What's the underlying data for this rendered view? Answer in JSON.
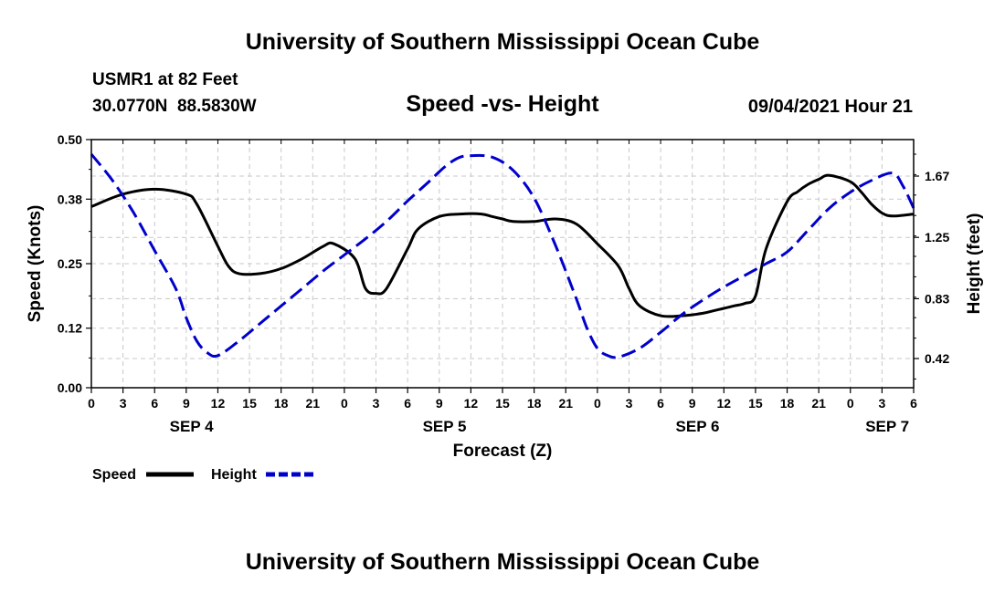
{
  "page": {
    "title_top": "University of Southern Mississippi Ocean Cube",
    "title_bottom": "University of Southern Mississippi Ocean Cube",
    "station": "USMR1 at 82 Feet",
    "location": "30.0770N  88.5830W",
    "datetime": "09/04/2021 Hour 21"
  },
  "chart_data": {
    "type": "line",
    "title": "Speed -vs- Height",
    "xlabel": "Forecast (Z)",
    "ylabel": "Speed (Knots)",
    "y2label": "Height (feet)",
    "x_hours_range": [
      0,
      78
    ],
    "ylim": [
      0.0,
      0.5
    ],
    "y2lim": [
      0.22,
      1.92
    ],
    "yticks": [
      0.0,
      0.12,
      0.25,
      0.38,
      0.5
    ],
    "ytick_labels": [
      "0.00",
      "0.12",
      "0.25",
      "0.38",
      "0.50"
    ],
    "y2ticks": [
      0.42,
      0.83,
      1.25,
      1.67
    ],
    "y2tick_labels": [
      "0.42",
      "0.83",
      "1.25",
      "1.67"
    ],
    "xtick_labels": [
      "0",
      "3",
      "6",
      "9",
      "12",
      "15",
      "18",
      "21",
      "0",
      "3",
      "6",
      "9",
      "12",
      "15",
      "18",
      "21",
      "0",
      "3",
      "6",
      "9",
      "12",
      "15",
      "18",
      "21",
      "0",
      "3",
      "6"
    ],
    "date_labels": [
      {
        "label": "SEP 4",
        "hour": 9.5
      },
      {
        "label": "SEP 5",
        "hour": 33.5
      },
      {
        "label": "SEP 6",
        "hour": 57.5
      },
      {
        "label": "SEP 7",
        "hour": 75.5
      }
    ],
    "grid": true,
    "series": [
      {
        "name": "Speed",
        "axis": "left",
        "color": "#000000",
        "dash": "solid",
        "x": [
          0,
          3,
          6,
          9,
          10,
          12,
          13,
          14,
          16,
          18,
          20,
          22,
          23,
          25,
          26,
          27,
          28,
          30,
          31,
          33,
          35,
          37,
          38,
          39,
          40,
          42,
          44,
          46,
          48,
          50,
          51,
          52,
          54,
          56,
          58,
          59,
          60,
          61,
          62,
          63,
          64,
          66,
          67,
          68,
          69,
          70,
          72,
          73,
          74,
          75,
          76,
          78
        ],
        "values": [
          0.365,
          0.39,
          0.4,
          0.39,
          0.37,
          0.285,
          0.245,
          0.23,
          0.23,
          0.24,
          0.26,
          0.285,
          0.29,
          0.26,
          0.2,
          0.19,
          0.2,
          0.28,
          0.32,
          0.345,
          0.35,
          0.35,
          0.345,
          0.34,
          0.335,
          0.335,
          0.34,
          0.33,
          0.29,
          0.245,
          0.2,
          0.165,
          0.145,
          0.145,
          0.15,
          0.155,
          0.16,
          0.165,
          0.17,
          0.185,
          0.28,
          0.375,
          0.395,
          0.41,
          0.42,
          0.428,
          0.415,
          0.395,
          0.37,
          0.352,
          0.346,
          0.35
        ]
      },
      {
        "name": "Height",
        "axis": "right",
        "color": "#0000cc",
        "dash": "dashed",
        "x": [
          0,
          2,
          4,
          6,
          8,
          9,
          10,
          11,
          12,
          14,
          16,
          18,
          20,
          22,
          24,
          26,
          28,
          30,
          32,
          33,
          34,
          35,
          36,
          38,
          40,
          42,
          44,
          46,
          47,
          48,
          49,
          50,
          52,
          54,
          56,
          58,
          60,
          62,
          64,
          66,
          68,
          70,
          72,
          74,
          76,
          77,
          78
        ],
        "values": [
          1.82,
          1.64,
          1.42,
          1.16,
          0.9,
          0.7,
          0.54,
          0.46,
          0.44,
          0.54,
          0.66,
          0.78,
          0.9,
          1.02,
          1.13,
          1.24,
          1.36,
          1.5,
          1.63,
          1.7,
          1.76,
          1.8,
          1.81,
          1.8,
          1.71,
          1.52,
          1.2,
          0.83,
          0.63,
          0.49,
          0.44,
          0.43,
          0.49,
          0.6,
          0.72,
          0.82,
          0.91,
          0.99,
          1.07,
          1.15,
          1.3,
          1.45,
          1.56,
          1.64,
          1.69,
          1.6,
          1.45
        ]
      }
    ]
  }
}
